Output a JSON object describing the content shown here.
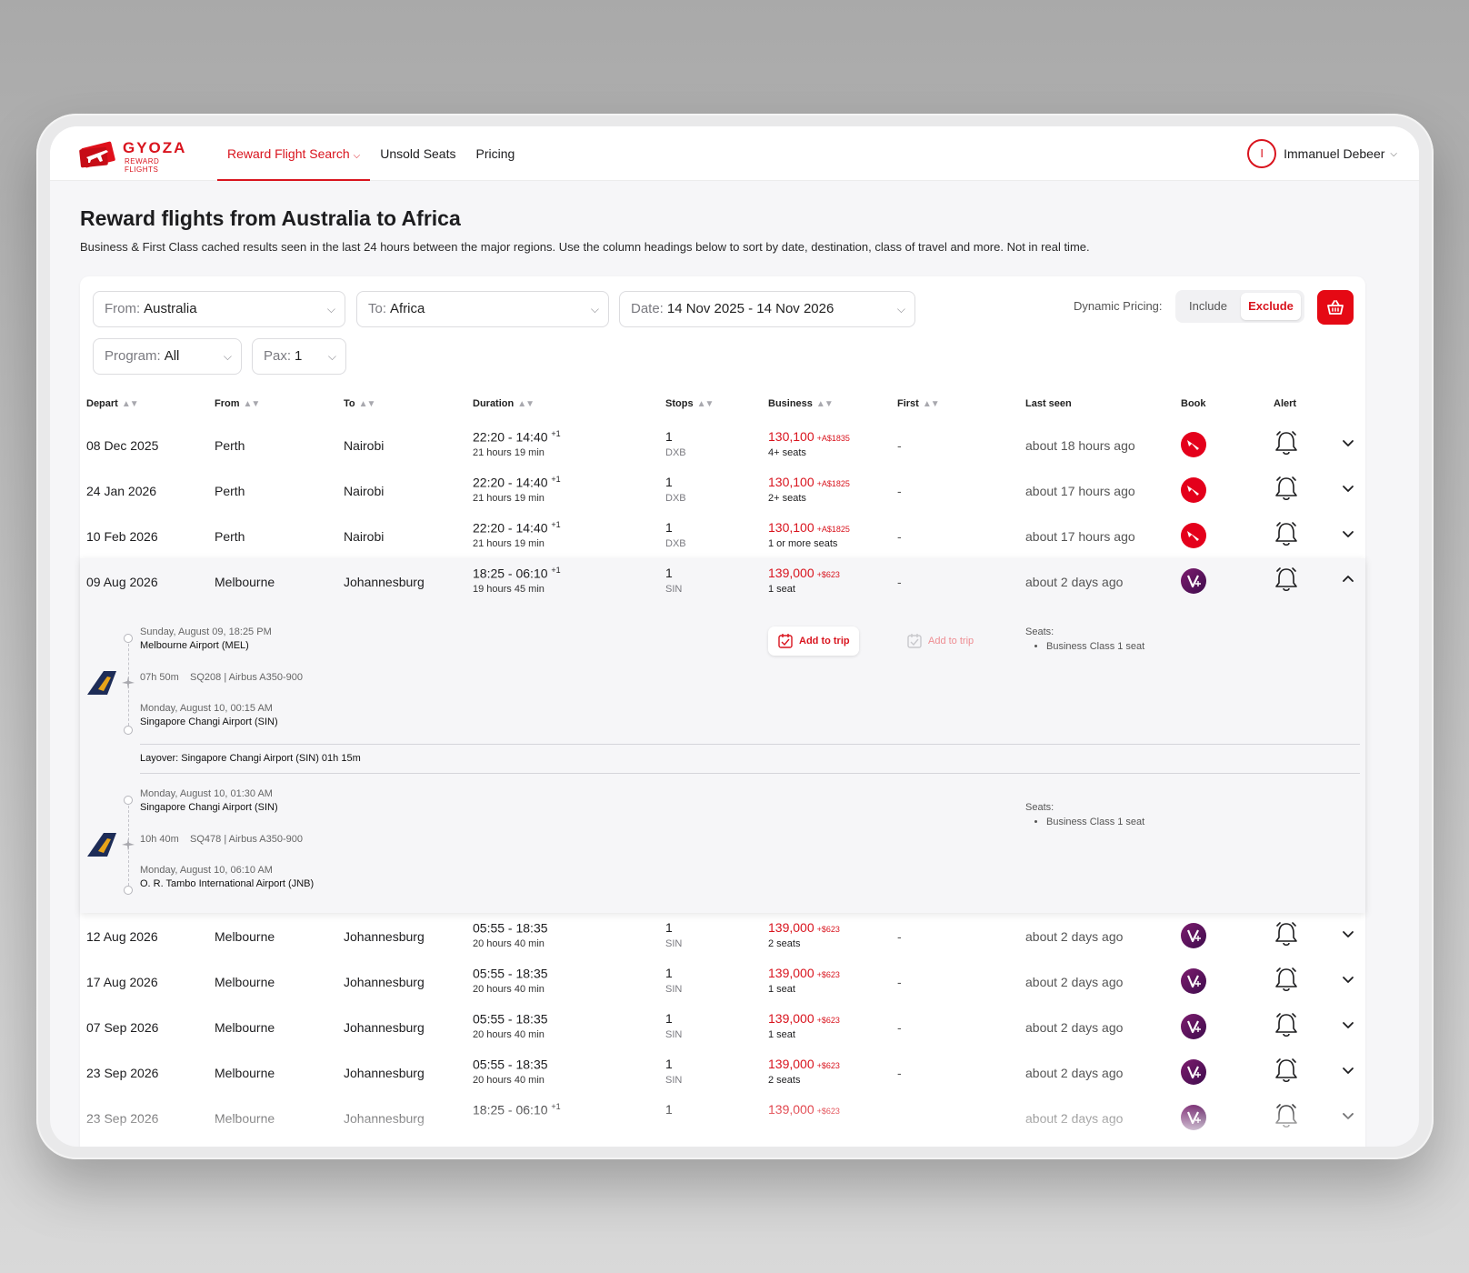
{
  "brand": {
    "name": "GYOZA",
    "tagline": "REWARD FLIGHTS",
    "accent": "#d9141e"
  },
  "nav": [
    {
      "label": "Reward Flight Search",
      "active": true,
      "dropdown": true
    },
    {
      "label": "Unsold Seats",
      "active": false
    },
    {
      "label": "Pricing",
      "active": false
    }
  ],
  "user": {
    "initial": "I",
    "name": "Immanuel Debeer"
  },
  "page": {
    "title": "Reward flights from Australia to Africa",
    "description": "Business & First Class cached results seen in the last 24 hours between the major regions. Use the column headings below to sort by date, destination, class of travel and more. Not in real time."
  },
  "filters": {
    "from": {
      "label": "From:",
      "value": "Australia"
    },
    "to": {
      "label": "To:",
      "value": "Africa"
    },
    "date": {
      "label": "Date:",
      "value": "14 Nov 2025 - 14 Nov 2026"
    },
    "program": {
      "label": "Program:",
      "value": "All"
    },
    "pax": {
      "label": "Pax:",
      "value": "1"
    },
    "dynamic_pricing": {
      "label": "Dynamic Pricing:",
      "include": "Include",
      "exclude": "Exclude",
      "selected": "Exclude"
    }
  },
  "table": {
    "headers": {
      "depart": "Depart",
      "from": "From",
      "to": "To",
      "duration": "Duration",
      "stops": "Stops",
      "business": "Business",
      "first": "First",
      "last_seen": "Last seen",
      "book": "Book",
      "alert": "Alert"
    },
    "rows": [
      {
        "date": "08 Dec 2025",
        "from": "Perth",
        "to": "Nairobi",
        "time": "22:20 - 14:40",
        "plus": "+1",
        "duration": "21 hours 19 min",
        "stops": "1",
        "via": "DXB",
        "price": "130,100",
        "tax": "+A$1835",
        "seats": "4+ seats",
        "first": "-",
        "last_seen": "about 18 hours ago",
        "airline": "qantas-logo"
      },
      {
        "date": "24 Jan 2026",
        "from": "Perth",
        "to": "Nairobi",
        "time": "22:20 - 14:40",
        "plus": "+1",
        "duration": "21 hours 19 min",
        "stops": "1",
        "via": "DXB",
        "price": "130,100",
        "tax": "+A$1825",
        "seats": "2+ seats",
        "first": "-",
        "last_seen": "about 17 hours ago",
        "airline": "qantas-logo"
      },
      {
        "date": "10 Feb 2026",
        "from": "Perth",
        "to": "Nairobi",
        "time": "22:20 - 14:40",
        "plus": "+1",
        "duration": "21 hours 19 min",
        "stops": "1",
        "via": "DXB",
        "price": "130,100",
        "tax": "+A$1825",
        "seats": "1 or more seats",
        "first": "-",
        "last_seen": "about 17 hours ago",
        "airline": "qantas-logo"
      },
      {
        "date": "09 Aug 2026",
        "from": "Melbourne",
        "to": "Johannesburg",
        "time": "18:25 - 06:10",
        "plus": "+1",
        "duration": "19 hours 45 min",
        "stops": "1",
        "via": "SIN",
        "price": "139,000",
        "tax": "+$623",
        "seats": "1 seat",
        "first": "-",
        "last_seen": "about 2 days ago",
        "airline": "velocity-logo",
        "expanded": true
      },
      {
        "date": "12 Aug 2026",
        "from": "Melbourne",
        "to": "Johannesburg",
        "time": "05:55 - 18:35",
        "plus": "",
        "duration": "20 hours 40 min",
        "stops": "1",
        "via": "SIN",
        "price": "139,000",
        "tax": "+$623",
        "seats": "2 seats",
        "first": "-",
        "last_seen": "about 2 days ago",
        "airline": "velocity-logo"
      },
      {
        "date": "17 Aug 2026",
        "from": "Melbourne",
        "to": "Johannesburg",
        "time": "05:55 - 18:35",
        "plus": "",
        "duration": "20 hours 40 min",
        "stops": "1",
        "via": "SIN",
        "price": "139,000",
        "tax": "+$623",
        "seats": "1 seat",
        "first": "-",
        "last_seen": "about 2 days ago",
        "airline": "velocity-logo"
      },
      {
        "date": "07 Sep 2026",
        "from": "Melbourne",
        "to": "Johannesburg",
        "time": "05:55 - 18:35",
        "plus": "",
        "duration": "20 hours 40 min",
        "stops": "1",
        "via": "SIN",
        "price": "139,000",
        "tax": "+$623",
        "seats": "1 seat",
        "first": "-",
        "last_seen": "about 2 days ago",
        "airline": "velocity-logo"
      },
      {
        "date": "23 Sep 2026",
        "from": "Melbourne",
        "to": "Johannesburg",
        "time": "05:55 - 18:35",
        "plus": "",
        "duration": "20 hours 40 min",
        "stops": "1",
        "via": "SIN",
        "price": "139,000",
        "tax": "+$623",
        "seats": "2 seats",
        "first": "-",
        "last_seen": "about 2 days ago",
        "airline": "velocity-logo"
      },
      {
        "date": "23 Sep 2026",
        "from": "Melbourne",
        "to": "Johannesburg",
        "time": "18:25 - 06:10",
        "plus": "+1",
        "duration": "",
        "stops": "1",
        "via": "",
        "price": "139,000",
        "tax": "+$623",
        "seats": "",
        "first": "",
        "last_seen": "about 2 days ago",
        "airline": "velocity-logo"
      }
    ]
  },
  "expanded_detail": {
    "segments": [
      {
        "depart_time": "Sunday, August 09, 18:25 PM",
        "depart_airport": "Melbourne Airport (MEL)",
        "flight_info": "07h 50m    SQ208 | Airbus A350-900",
        "arrive_time": "Monday, August 10, 00:15 AM",
        "arrive_airport": "Singapore Changi Airport (SIN)",
        "seats_label": "Seats:",
        "seats_item": "Business Class 1 seat",
        "airline": "singapore-airlines-tail"
      },
      {
        "depart_time": "Monday, August 10, 01:30 AM",
        "depart_airport": "Singapore Changi Airport (SIN)",
        "flight_info": "10h 40m    SQ478 | Airbus A350-900",
        "arrive_time": "Monday, August 10, 06:10 AM",
        "arrive_airport": "O. R. Tambo International Airport (JNB)",
        "seats_label": "Seats:",
        "seats_item": "Business Class 1 seat",
        "airline": "singapore-airlines-tail"
      }
    ],
    "layover": "Layover: Singapore Changi Airport (SIN) 01h 15m",
    "add_trip_business": "Add to trip",
    "add_trip_first": "Add to trip"
  }
}
